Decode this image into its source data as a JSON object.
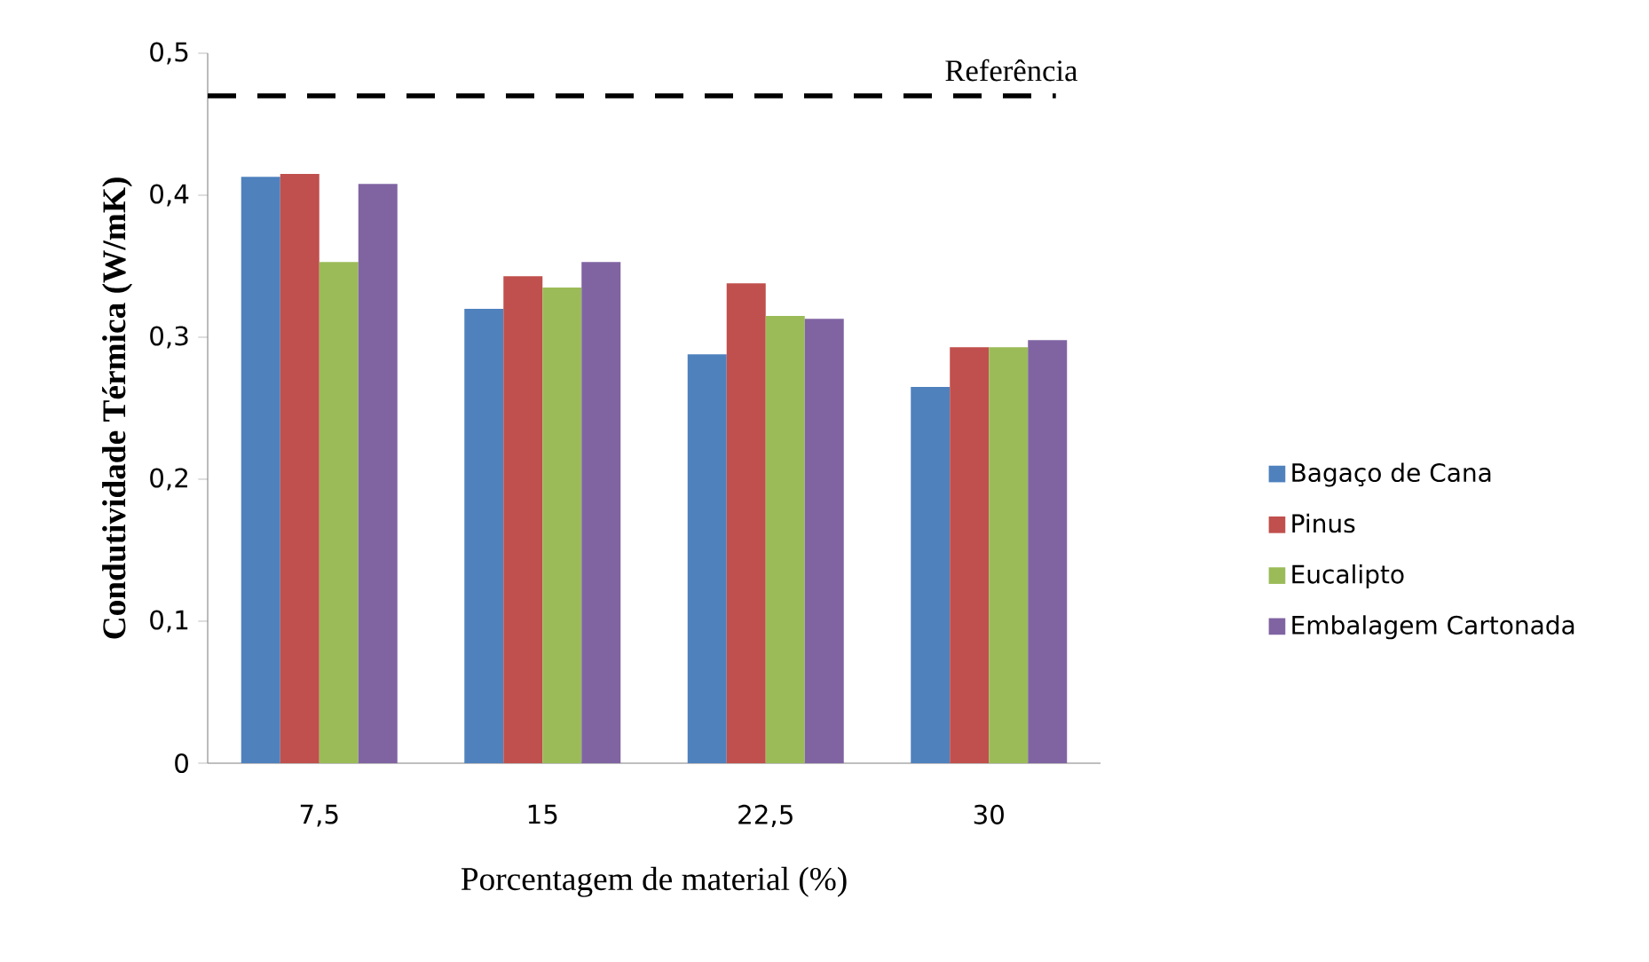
{
  "chart_data": {
    "type": "bar",
    "ylabel": "Condutividade Térmica (W/mK)",
    "xlabel": "Porcentagem de material (%)",
    "categories": [
      "7,5",
      "15",
      "22,5",
      "30"
    ],
    "series": [
      {
        "name": "Bagaço de Cana",
        "color": "#4f81bd",
        "values": [
          0.413,
          0.32,
          0.288,
          0.265
        ]
      },
      {
        "name": "Pinus",
        "color": "#c0504d",
        "values": [
          0.415,
          0.343,
          0.338,
          0.293
        ]
      },
      {
        "name": "Eucalipto",
        "color": "#9bbb59",
        "values": [
          0.353,
          0.335,
          0.315,
          0.293
        ]
      },
      {
        "name": "Embalagem Cartonada",
        "color": "#8064a2",
        "values": [
          0.408,
          0.353,
          0.313,
          0.298
        ]
      }
    ],
    "ylim": [
      0,
      0.5
    ],
    "yticks": [
      {
        "value": 0,
        "label": "0"
      },
      {
        "value": 0.1,
        "label": "0,1"
      },
      {
        "value": 0.2,
        "label": "0,2"
      },
      {
        "value": 0.3,
        "label": "0,3"
      },
      {
        "value": 0.4,
        "label": "0,4"
      },
      {
        "value": 0.5,
        "label": "0,5"
      }
    ],
    "ref_lines": [
      {
        "axis": "y",
        "value": 0.47,
        "label": "Referência",
        "color": "#000000",
        "line_style": "dashed"
      }
    ],
    "legend": "right"
  }
}
